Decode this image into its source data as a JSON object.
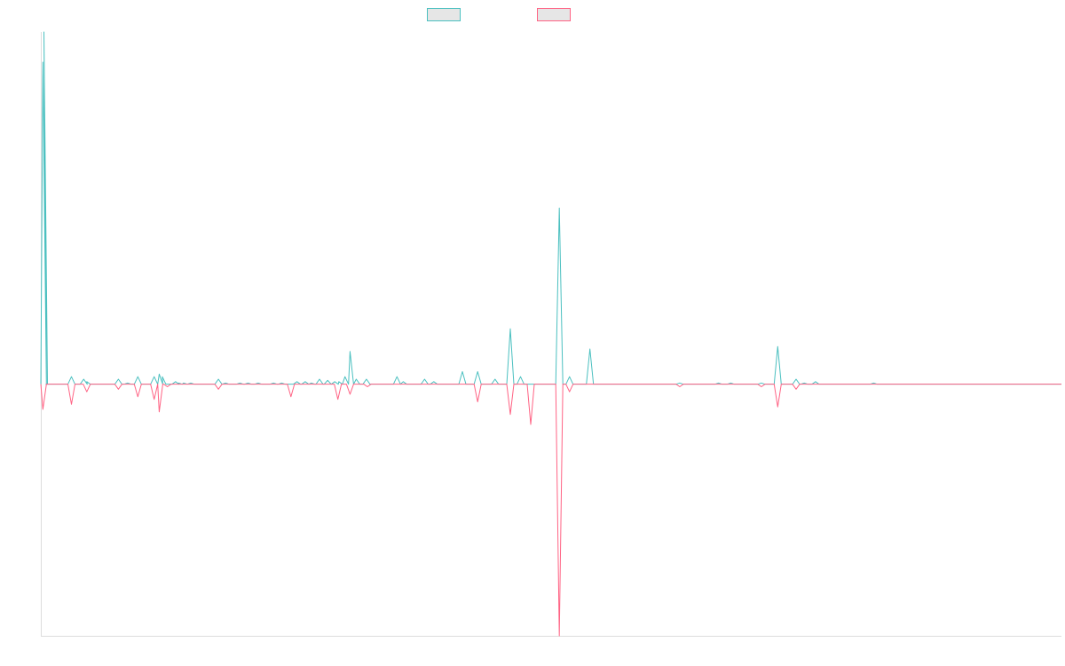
{
  "chart_data": {
    "type": "line",
    "title": "",
    "xlabel": "",
    "ylabel": "",
    "legend_position": "top-center",
    "grid": false,
    "colors": {
      "positive": "#4bc0c0",
      "negative": "#ff6384",
      "axis": "#dddddd"
    },
    "xlim": [
      0,
      100
    ],
    "ylim": [
      -100,
      140
    ],
    "series": [
      {
        "name": "",
        "color": "#4bc0c0",
        "points": [
          [
            0.2,
            128
          ],
          [
            0.3,
            140
          ],
          [
            0.5,
            0
          ],
          [
            3.0,
            3
          ],
          [
            4.2,
            2
          ],
          [
            4.5,
            1
          ],
          [
            7.6,
            2
          ],
          [
            8.5,
            0.5
          ],
          [
            9.5,
            3
          ],
          [
            11.1,
            3
          ],
          [
            11.6,
            4
          ],
          [
            11.9,
            3
          ],
          [
            13.2,
            1
          ],
          [
            13.5,
            0.5
          ],
          [
            14.0,
            0.5
          ],
          [
            14.7,
            0.5
          ],
          [
            17.4,
            2
          ],
          [
            18.1,
            0.5
          ],
          [
            19.5,
            0.5
          ],
          [
            20.3,
            0.5
          ],
          [
            21.3,
            0.5
          ],
          [
            22.8,
            0.5
          ],
          [
            23.6,
            0.5
          ],
          [
            25.1,
            1
          ],
          [
            25.9,
            1
          ],
          [
            26.5,
            0.5
          ],
          [
            27.3,
            2
          ],
          [
            28.1,
            1.5
          ],
          [
            28.8,
            1
          ],
          [
            29.2,
            1
          ],
          [
            29.8,
            3
          ],
          [
            30.3,
            13
          ],
          [
            30.9,
            2
          ],
          [
            31.9,
            2
          ],
          [
            34.9,
            3
          ],
          [
            35.5,
            1
          ],
          [
            37.6,
            2
          ],
          [
            38.5,
            1
          ],
          [
            41.3,
            5
          ],
          [
            42.8,
            5
          ],
          [
            44.5,
            2
          ],
          [
            46.0,
            22
          ],
          [
            47.0,
            3
          ],
          [
            50.8,
            70
          ],
          [
            51.8,
            3
          ],
          [
            53.8,
            14
          ],
          [
            62.6,
            0.5
          ],
          [
            66.4,
            0.5
          ],
          [
            67.6,
            0.5
          ],
          [
            70.6,
            0.5
          ],
          [
            72.2,
            15
          ],
          [
            74.0,
            2
          ],
          [
            74.8,
            0.5
          ],
          [
            75.9,
            1
          ],
          [
            81.6,
            0.5
          ]
        ]
      },
      {
        "name": "",
        "color": "#ff6384",
        "points": [
          [
            0.2,
            -10
          ],
          [
            3.0,
            -8
          ],
          [
            4.5,
            -3
          ],
          [
            7.6,
            -2
          ],
          [
            9.5,
            -5
          ],
          [
            11.1,
            -6
          ],
          [
            11.6,
            -11
          ],
          [
            12.4,
            -1
          ],
          [
            17.4,
            -2
          ],
          [
            24.5,
            -5
          ],
          [
            29.1,
            -6
          ],
          [
            30.3,
            -4
          ],
          [
            32.0,
            -1
          ],
          [
            42.8,
            -7
          ],
          [
            46.0,
            -12
          ],
          [
            48.0,
            -16
          ],
          [
            50.8,
            -100
          ],
          [
            51.8,
            -3
          ],
          [
            62.6,
            -1
          ],
          [
            70.6,
            -1
          ],
          [
            72.2,
            -9
          ],
          [
            74.0,
            -2
          ]
        ]
      }
    ]
  }
}
